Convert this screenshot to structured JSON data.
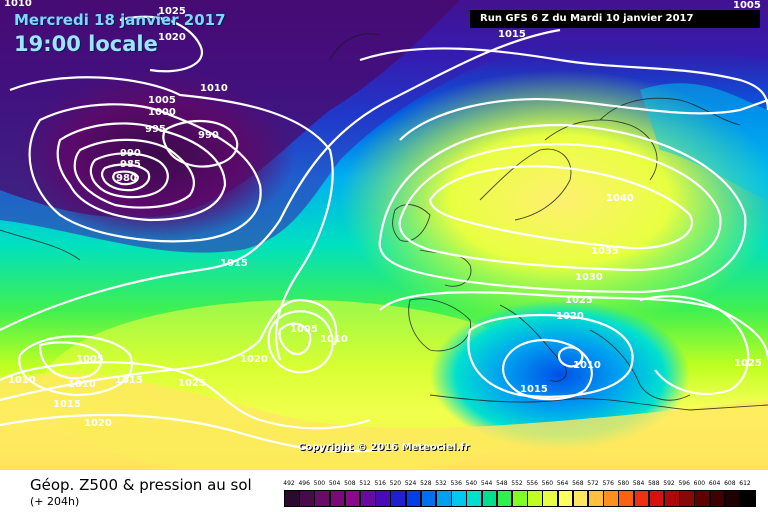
{
  "header": {
    "date": "Mercredi 18 janvier 2017",
    "local_time": "19:00 locale",
    "run": "Run GFS 6 Z du Mardi 10 janvier 2017"
  },
  "copyright": "Copyright © 2016 Meteociel.fr",
  "footer": {
    "title": "Géop. Z500 & pression au sol",
    "lead_time": "(+ 204h)"
  },
  "isobar_labels": {
    "l1010_tl": "1010",
    "l1025_top": "1025",
    "l1020_top": "1020",
    "l1015_run": "1015",
    "l1005_tr": "1005",
    "l1010_a": "1010",
    "l1005_a": "1005",
    "l1000": "1000",
    "l995": "995",
    "l990_a": "990",
    "l990_b": "990",
    "l985": "985",
    "l980": "980",
    "l1040": "1040",
    "l1035": "1035",
    "l1030": "1030",
    "l1025_eu": "1025",
    "l1020_eu": "1020",
    "l1010_med": "1010",
    "l1015_med": "1015",
    "l1025_right": "1025",
    "l1015_mid": "1015",
    "l1005_mid": "1005",
    "l1010_mid": "1010",
    "l1020_mid": "1020",
    "l1005_left": "1005",
    "l1010_left1": "1010",
    "l1010_left2": "1010",
    "l1015_left1": "1015",
    "l1025_left": "1025",
    "l1015_left2": "1015",
    "l1020_left": "1020"
  },
  "legend": {
    "ticks": [
      "492",
      "496",
      "500",
      "504",
      "508",
      "512",
      "516",
      "520",
      "524",
      "528",
      "532",
      "536",
      "540",
      "544",
      "548",
      "552",
      "556",
      "560",
      "564",
      "568",
      "572",
      "576",
      "580",
      "584",
      "588",
      "592",
      "596",
      "600",
      "604",
      "608",
      "612"
    ],
    "colors": [
      "#2b0a2b",
      "#4a0a4a",
      "#6a0a6a",
      "#7a0a7a",
      "#8a0a8a",
      "#6a0aa0",
      "#4a0ab8",
      "#2020d0",
      "#0040e8",
      "#0070f0",
      "#00a0f0",
      "#00c8f0",
      "#00e0d0",
      "#00e090",
      "#30f050",
      "#80ff20",
      "#c0ff20",
      "#e8ff40",
      "#ffff60",
      "#ffe860",
      "#ffc040",
      "#ff9020",
      "#ff6010",
      "#f03010",
      "#d81010",
      "#b00808",
      "#880808",
      "#600000",
      "#400000",
      "#200000",
      "#000000"
    ]
  }
}
